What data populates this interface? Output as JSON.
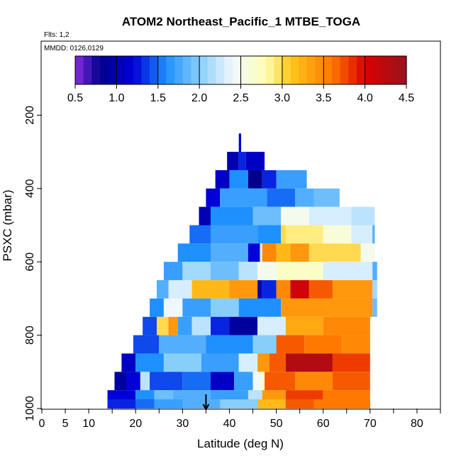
{
  "chart_data": {
    "type": "heatmap",
    "title": "ATOM2 Northeast_Pacific_1 MTBE_TOGA",
    "flights_label": "Flts: 1,2",
    "mmdd_label": "MMDD: 0126,0129",
    "xlabel": "Latitude (deg N)",
    "ylabel": "PSXC (mbar)",
    "xlim": [
      0,
      85
    ],
    "ylim": [
      1000,
      0
    ],
    "x_ticks": [
      0,
      5,
      10,
      20,
      30,
      40,
      50,
      60,
      70,
      80
    ],
    "y_ticks": [
      200,
      400,
      600,
      800,
      1000
    ],
    "x_tick_labels": [
      "0",
      "5",
      "10",
      "20",
      "30",
      "40",
      "50",
      "60",
      "70",
      "80"
    ],
    "y_tick_labels": [
      "200",
      "400",
      "600",
      "800",
      "1000"
    ],
    "colorbar": {
      "min": 0.5,
      "max": 4.5,
      "ticks": [
        0.5,
        1.0,
        1.5,
        2.0,
        2.5,
        3.0,
        3.5,
        4.0,
        4.5
      ],
      "tick_labels": [
        "0.5",
        "1.0",
        "1.5",
        "2.0",
        "2.5",
        "3.0",
        "3.5",
        "4.0",
        "4.5"
      ]
    },
    "marker": {
      "latitude": 35,
      "description": "arrow"
    },
    "band_height_mbar": 50,
    "bands": [
      {
        "p": 275,
        "segments": [
          [
            42.0,
            42.5,
            1.2
          ]
        ]
      },
      {
        "p": 325,
        "segments": [
          [
            39.5,
            42.0,
            1.0
          ],
          [
            42.0,
            43.5,
            1.3
          ],
          [
            43.5,
            47.5,
            1.1
          ]
        ]
      },
      {
        "p": 375,
        "segments": [
          [
            37.0,
            40.0,
            1.1
          ],
          [
            40.0,
            44.0,
            1.6
          ],
          [
            44.0,
            47.0,
            0.8
          ],
          [
            47.0,
            50.0,
            1.3
          ],
          [
            50.0,
            56.5,
            1.7
          ]
        ]
      },
      {
        "p": 425,
        "segments": [
          [
            35.0,
            38.0,
            1.2
          ],
          [
            38.0,
            48.0,
            1.7
          ],
          [
            48.0,
            54.0,
            1.5
          ],
          [
            54.0,
            58.0,
            1.8
          ],
          [
            58.0,
            63.5,
            1.9
          ]
        ]
      },
      {
        "p": 475,
        "segments": [
          [
            33.5,
            36.0,
            1.0
          ],
          [
            36.0,
            45.0,
            1.6
          ],
          [
            45.0,
            51.0,
            1.9
          ],
          [
            51.0,
            57.0,
            2.5
          ],
          [
            57.0,
            66.0,
            2.3
          ],
          [
            66.0,
            71.0,
            2.2
          ]
        ]
      },
      {
        "p": 525,
        "segments": [
          [
            31.5,
            36.0,
            1.5
          ],
          [
            36.0,
            46.0,
            1.7
          ],
          [
            46.0,
            51.0,
            1.6
          ],
          [
            51.0,
            52.0,
            3.0
          ],
          [
            52.0,
            60.0,
            2.9
          ],
          [
            60.0,
            66.0,
            2.6
          ],
          [
            66.0,
            70.5,
            2.3
          ],
          [
            70.5,
            71.0,
            1.8
          ]
        ]
      },
      {
        "p": 575,
        "segments": [
          [
            29.0,
            36.0,
            1.6
          ],
          [
            36.0,
            44.0,
            1.8
          ],
          [
            44.0,
            46.5,
            1.2
          ],
          [
            46.5,
            47.0,
            2.3
          ],
          [
            47.0,
            50.0,
            3.5
          ],
          [
            50.0,
            53.0,
            3.2
          ],
          [
            53.0,
            57.0,
            3.4
          ],
          [
            57.0,
            68.0,
            3.0
          ],
          [
            68.0,
            71.0,
            2.5
          ]
        ]
      },
      {
        "p": 625,
        "segments": [
          [
            26.0,
            30.0,
            1.7
          ],
          [
            30.0,
            36.0,
            2.1
          ],
          [
            36.0,
            42.0,
            1.9
          ],
          [
            42.0,
            46.0,
            2.2
          ],
          [
            46.0,
            50.0,
            2.5
          ],
          [
            50.0,
            60.0,
            2.7
          ],
          [
            60.0,
            70.5,
            2.3
          ],
          [
            70.5,
            71.5,
            1.8
          ]
        ]
      },
      {
        "p": 675,
        "segments": [
          [
            24.5,
            27.0,
            1.8
          ],
          [
            27.0,
            32.0,
            2.3
          ],
          [
            32.0,
            40.0,
            3.2
          ],
          [
            40.0,
            46.0,
            3.4
          ],
          [
            46.0,
            47.0,
            1.0
          ],
          [
            47.0,
            50.0,
            1.3
          ],
          [
            50.0,
            53.0,
            3.5
          ],
          [
            53.0,
            57.0,
            4.1
          ],
          [
            57.0,
            62.0,
            3.7
          ],
          [
            62.0,
            70.5,
            3.4
          ],
          [
            70.5,
            71.5,
            2.1
          ]
        ]
      },
      {
        "p": 725,
        "segments": [
          [
            23.0,
            26.0,
            1.6
          ],
          [
            26.0,
            30.0,
            2.4
          ],
          [
            30.0,
            36.0,
            1.7
          ],
          [
            36.0,
            42.0,
            2.0
          ],
          [
            42.0,
            51.0,
            1.6
          ],
          [
            51.0,
            70.5,
            3.4
          ],
          [
            70.5,
            71.5,
            1.9
          ]
        ]
      },
      {
        "p": 775,
        "segments": [
          [
            21.5,
            24.5,
            1.4
          ],
          [
            24.5,
            27.0,
            3.0
          ],
          [
            27.0,
            29.0,
            3.4
          ],
          [
            29.0,
            32.0,
            1.7
          ],
          [
            32.0,
            36.0,
            2.2
          ],
          [
            36.0,
            40.0,
            1.3
          ],
          [
            40.0,
            46.0,
            0.9
          ],
          [
            46.0,
            52.0,
            2.3
          ],
          [
            52.0,
            60.0,
            3.3
          ],
          [
            60.0,
            70.0,
            3.5
          ]
        ]
      },
      {
        "p": 825,
        "segments": [
          [
            19.5,
            25.0,
            1.4
          ],
          [
            25.0,
            35.0,
            1.8
          ],
          [
            35.0,
            45.0,
            1.6
          ],
          [
            45.0,
            50.0,
            2.0
          ],
          [
            50.0,
            56.0,
            3.7
          ],
          [
            56.0,
            64.0,
            3.6
          ],
          [
            64.0,
            70.0,
            3.5
          ]
        ]
      },
      {
        "p": 875,
        "segments": [
          [
            17.0,
            20.0,
            1.1
          ],
          [
            20.0,
            26.0,
            1.6
          ],
          [
            26.0,
            34.0,
            2.0
          ],
          [
            34.0,
            42.0,
            1.7
          ],
          [
            42.0,
            46.0,
            2.3
          ],
          [
            46.0,
            48.5,
            3.4
          ],
          [
            48.5,
            52.0,
            3.7
          ],
          [
            52.0,
            62.0,
            4.3
          ],
          [
            62.0,
            70.0,
            3.8
          ]
        ]
      },
      {
        "p": 925,
        "segments": [
          [
            15.5,
            18.0,
            0.9
          ],
          [
            18.0,
            21.0,
            1.2
          ],
          [
            21.0,
            23.0,
            2.2
          ],
          [
            23.0,
            30.0,
            1.4
          ],
          [
            30.0,
            36.0,
            1.5
          ],
          [
            36.0,
            41.0,
            1.1
          ],
          [
            41.0,
            45.0,
            1.7
          ],
          [
            45.0,
            46.5,
            2.4
          ],
          [
            46.5,
            47.5,
            2.6
          ],
          [
            47.5,
            54.0,
            3.7
          ],
          [
            54.0,
            62.0,
            3.5
          ],
          [
            62.0,
            70.0,
            3.7
          ]
        ]
      },
      {
        "p": 975,
        "segments": [
          [
            14.0,
            20.0,
            1.2
          ],
          [
            20.0,
            24.0,
            1.6
          ],
          [
            24.0,
            28.0,
            1.9
          ],
          [
            28.0,
            36.0,
            1.8
          ],
          [
            36.0,
            44.0,
            1.7
          ],
          [
            44.0,
            47.0,
            2.2
          ],
          [
            47.0,
            52.0,
            3.4
          ],
          [
            52.0,
            60.0,
            3.8
          ],
          [
            60.0,
            70.0,
            3.6
          ]
        ]
      },
      {
        "p": 1000,
        "segments": [
          [
            14.0,
            20.0,
            1.3
          ],
          [
            20.0,
            24.0,
            1.5
          ],
          [
            24.0,
            30.0,
            1.7
          ],
          [
            30.0,
            38.0,
            1.8
          ],
          [
            38.0,
            46.0,
            2.0
          ],
          [
            46.0,
            52.0,
            3.2
          ],
          [
            52.0,
            58.0,
            3.7
          ],
          [
            58.0,
            70.0,
            3.6
          ]
        ]
      }
    ]
  }
}
